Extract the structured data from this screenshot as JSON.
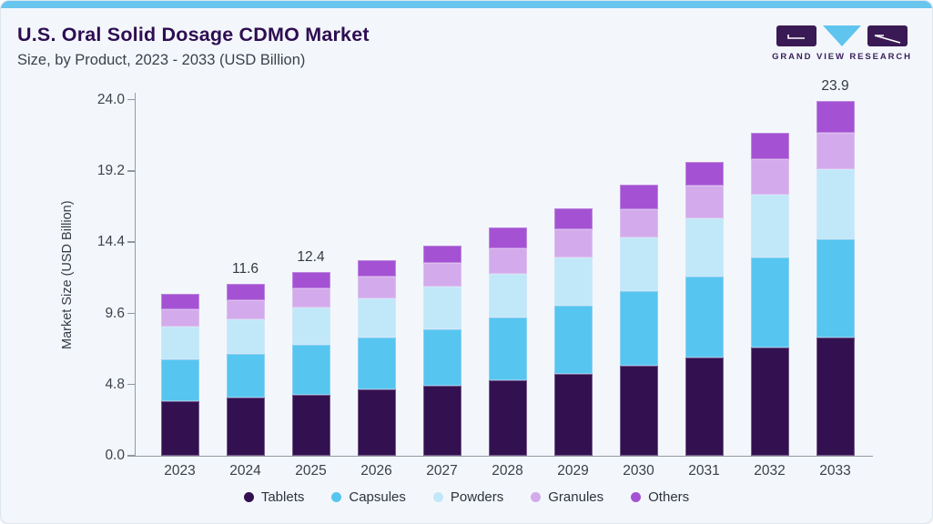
{
  "header": {
    "title": "U.S. Oral Solid Dosage CDMO Market",
    "subtitle": "Size, by Product, 2023 - 2033 (USD Billion)",
    "logo_text": "GRAND VIEW RESEARCH"
  },
  "colors": {
    "top_bar": "#68c5ee",
    "card_background": "#f3f7fb",
    "title_text": "#2e0d52",
    "axis_line": "#949aa5",
    "logo_purple": "#3a1a55",
    "logo_blue": "#5fc4ee"
  },
  "chart_data": {
    "type": "bar",
    "stacked": true,
    "title": "U.S. Oral Solid Dosage CDMO Market Size, by Product, 2023 - 2033 (USD Billion)",
    "xlabel": "",
    "ylabel": "Market Size (USD Billion)",
    "categories": [
      "2023",
      "2024",
      "2025",
      "2026",
      "2027",
      "2028",
      "2029",
      "2030",
      "2031",
      "2032",
      "2033"
    ],
    "series": [
      {
        "name": "Tablets",
        "color": "#331050",
        "values": [
          3.7,
          3.9,
          4.1,
          4.5,
          4.7,
          5.1,
          5.5,
          6.1,
          6.6,
          7.3,
          8.0
        ]
      },
      {
        "name": "Capsules",
        "color": "#56c5f0",
        "values": [
          2.8,
          3.0,
          3.4,
          3.5,
          3.8,
          4.2,
          4.6,
          5.0,
          5.5,
          6.1,
          6.6
        ]
      },
      {
        "name": "Powders",
        "color": "#c0e8f9",
        "values": [
          2.2,
          2.3,
          2.5,
          2.6,
          2.9,
          3.0,
          3.3,
          3.6,
          3.9,
          4.2,
          4.7
        ]
      },
      {
        "name": "Granules",
        "color": "#d3aaeb",
        "values": [
          1.2,
          1.3,
          1.3,
          1.5,
          1.6,
          1.7,
          1.9,
          1.9,
          2.2,
          2.4,
          2.5
        ]
      },
      {
        "name": "Others",
        "color": "#a452d3",
        "values": [
          1.0,
          1.1,
          1.1,
          1.1,
          1.2,
          1.4,
          1.4,
          1.7,
          1.6,
          1.8,
          2.1
        ]
      }
    ],
    "total_labels": [
      {
        "category": "2024",
        "label": "11.6"
      },
      {
        "category": "2025",
        "label": "12.4"
      },
      {
        "category": "2033",
        "label": "23.9"
      }
    ],
    "ytick_labels": [
      "0.0",
      "4.8",
      "9.6",
      "14.4",
      "19.2",
      "24.0"
    ],
    "ylim": [
      0,
      24
    ],
    "grid": false,
    "legend_position": "bottom"
  }
}
